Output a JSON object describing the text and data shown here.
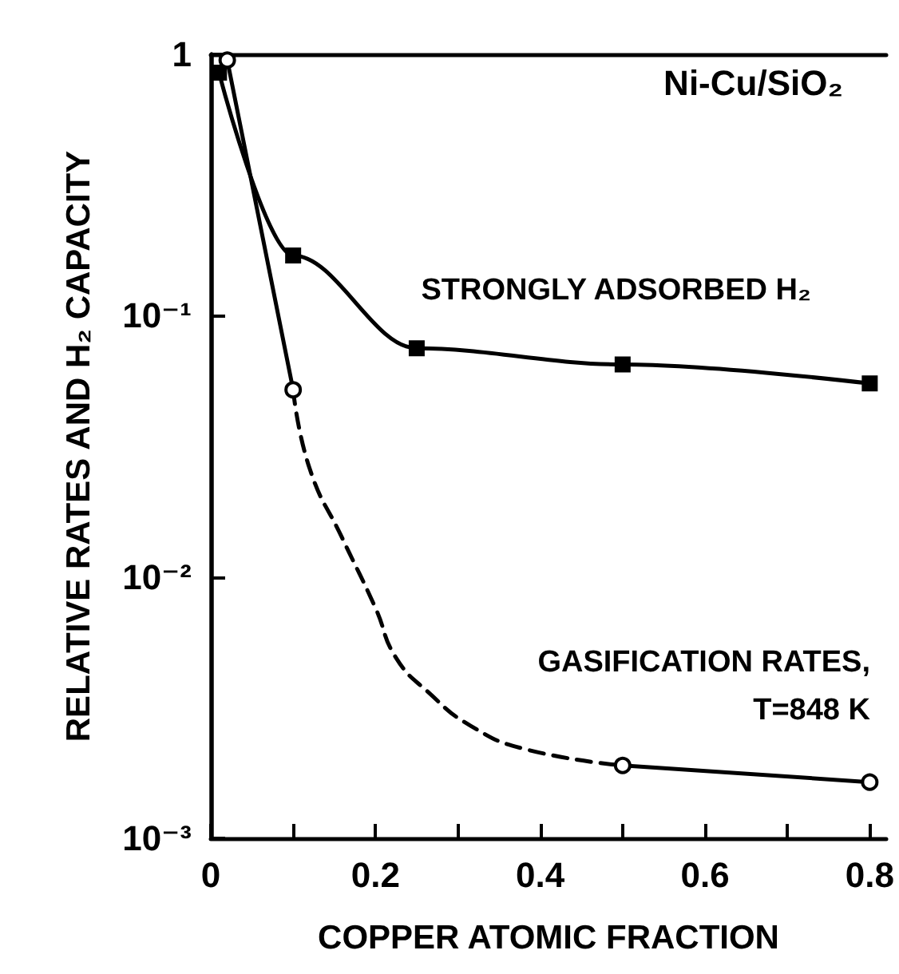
{
  "chart_data": {
    "type": "line",
    "title": "Ni-Cu/SiO₂",
    "xlabel": "COPPER ATOMIC FRACTION",
    "ylabel": "RELATIVE RATES AND H₂ CAPACITY",
    "log": "y",
    "grid": false,
    "legend": false,
    "xlim": [
      0,
      0.82
    ],
    "xticks": [
      0,
      {
        "value": 0.1,
        "label": null
      },
      0.2,
      {
        "value": 0.3,
        "label": null
      },
      0.4,
      {
        "value": 0.5,
        "label": null
      },
      0.6,
      {
        "value": 0.7,
        "label": null
      },
      0.8
    ],
    "ylim": [
      0.001,
      1
    ],
    "yticks": [
      {
        "value": 0.001,
        "label": "10⁻³"
      },
      {
        "value": 0.01,
        "label": "10⁻²"
      },
      {
        "value": 0.1,
        "label": "10⁻¹"
      },
      1
    ],
    "series": [
      {
        "name": "STRONGLY ADSORBED H₂",
        "color": "#000000",
        "marker": "square",
        "line_style": "solid",
        "x": [
          0.01,
          0.1,
          0.25,
          0.5,
          0.8
        ],
        "values": [
          0.85,
          0.17,
          0.075,
          0.065,
          0.055
        ]
      },
      {
        "color": "#000000",
        "marker": "circle",
        "line_style": "solid",
        "x": [
          0.02,
          0.1
        ],
        "values": [
          0.95,
          0.052
        ]
      },
      {
        "name": "GASIFICATION RATES, T=848 K",
        "color": "#000000",
        "marker": "none",
        "line_style": "dashed",
        "x": [
          0.1,
          0.12,
          0.16,
          0.2,
          0.225,
          0.265,
          0.315,
          0.38,
          0.5
        ],
        "values": [
          0.052,
          0.026,
          0.014,
          0.0076,
          0.0049,
          0.0036,
          0.0027,
          0.0022,
          0.0019
        ]
      },
      {
        "color": "#000000",
        "marker": "circle",
        "line_style": "solid",
        "x": [
          0.5,
          0.8
        ],
        "values": [
          0.0019,
          0.00164
        ]
      }
    ]
  }
}
